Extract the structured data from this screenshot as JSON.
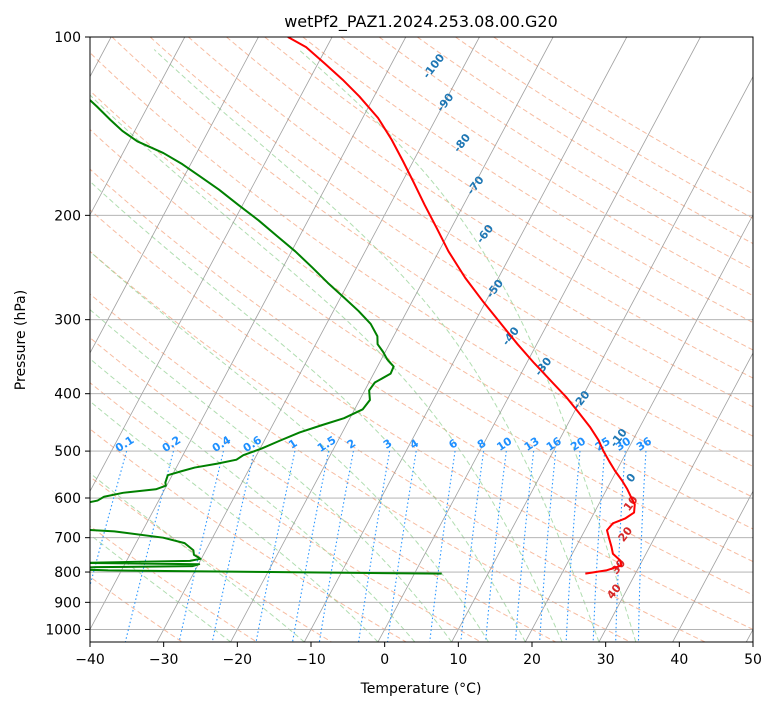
{
  "chart_data": {
    "type": "line",
    "subtype": "skew-t log-p diagram",
    "title": "wetPf2_PAZ1.2024.253.08.00.G20",
    "xlabel": "Temperature (°C)",
    "ylabel": "Pressure (hPa)",
    "xlim": [
      -40,
      50
    ],
    "ylim": [
      1050,
      100
    ],
    "y_scale": "log",
    "grid": true,
    "x_ticks": [
      -40,
      -30,
      -20,
      -10,
      0,
      10,
      20,
      30,
      40,
      50
    ],
    "y_ticks": [
      100,
      200,
      300,
      400,
      500,
      600,
      700,
      800,
      900,
      1000
    ],
    "series": [
      {
        "role": "temperature",
        "color": "#ff0000",
        "points": [
          [
            23.2,
            805
          ],
          [
            25.8,
            795
          ],
          [
            27.5,
            780
          ],
          [
            27.0,
            765
          ],
          [
            25.5,
            745
          ],
          [
            24.8,
            725
          ],
          [
            23.8,
            700
          ],
          [
            23.0,
            680
          ],
          [
            23.3,
            662
          ],
          [
            24.6,
            650
          ],
          [
            25.4,
            635
          ],
          [
            24.9,
            615
          ],
          [
            24.0,
            600
          ],
          [
            22.8,
            580
          ],
          [
            21.4,
            560
          ],
          [
            19.8,
            540
          ],
          [
            18.3,
            520
          ],
          [
            16.8,
            500
          ],
          [
            15.4,
            480
          ],
          [
            13.2,
            455
          ],
          [
            10.6,
            430
          ],
          [
            7.8,
            405
          ],
          [
            4.5,
            380
          ],
          [
            1.0,
            355
          ],
          [
            -2.6,
            330
          ],
          [
            -6.3,
            305
          ],
          [
            -10.3,
            280
          ],
          [
            -14.5,
            255
          ],
          [
            -18.7,
            230
          ],
          [
            -22.0,
            210
          ],
          [
            -25.3,
            192
          ],
          [
            -28.4,
            176
          ],
          [
            -31.4,
            162
          ],
          [
            -34.5,
            149
          ],
          [
            -37.9,
            137
          ],
          [
            -42.0,
            126
          ],
          [
            -45.5,
            118
          ],
          [
            -49.0,
            111
          ],
          [
            -52.8,
            104
          ],
          [
            -56.0,
            100
          ]
        ]
      },
      {
        "role": "dewpoint",
        "color": "#008000",
        "points": [
          [
            3.7,
            805
          ],
          [
            -19.7,
            800
          ],
          [
            -41.8,
            795
          ],
          [
            -48.5,
            790
          ],
          [
            -43.8,
            785
          ],
          [
            -30.7,
            782
          ],
          [
            -29.9,
            776
          ],
          [
            -45.8,
            772
          ],
          [
            -31.4,
            766
          ],
          [
            -30.1,
            760
          ],
          [
            -31.3,
            748
          ],
          [
            -31.7,
            735
          ],
          [
            -33.4,
            715
          ],
          [
            -36.7,
            700
          ],
          [
            -43.8,
            683
          ],
          [
            -56.0,
            670
          ],
          [
            -62.8,
            660
          ],
          [
            -64.6,
            652
          ],
          [
            -60.8,
            645
          ],
          [
            -54.8,
            638
          ],
          [
            -50.4,
            630
          ],
          [
            -50.5,
            622
          ],
          [
            -50.3,
            614
          ],
          [
            -48.3,
            606
          ],
          [
            -47.7,
            597
          ],
          [
            -45.4,
            588
          ],
          [
            -41.2,
            580
          ],
          [
            -40.1,
            572
          ],
          [
            -40.4,
            565
          ],
          [
            -40.5,
            557
          ],
          [
            -40.6,
            549
          ],
          [
            -39.1,
            541
          ],
          [
            -37.5,
            533
          ],
          [
            -34.7,
            525
          ],
          [
            -32.4,
            517
          ],
          [
            -31.8,
            508
          ],
          [
            -29.8,
            495
          ],
          [
            -28.0,
            481
          ],
          [
            -25.8,
            465
          ],
          [
            -23.3,
            452
          ],
          [
            -20.8,
            440
          ],
          [
            -18.9,
            425
          ],
          [
            -18.6,
            410
          ],
          [
            -19.4,
            395
          ],
          [
            -19.2,
            383
          ],
          [
            -17.7,
            370
          ],
          [
            -17.8,
            360
          ],
          [
            -19.2,
            350
          ],
          [
            -20.3,
            340
          ],
          [
            -21.6,
            330
          ],
          [
            -22.2,
            320
          ],
          [
            -24.0,
            305
          ],
          [
            -26.6,
            290
          ],
          [
            -29.6,
            275
          ],
          [
            -32.8,
            260
          ],
          [
            -36.0,
            245
          ],
          [
            -39.5,
            230
          ],
          [
            -43.0,
            217
          ],
          [
            -46.7,
            204
          ],
          [
            -50.6,
            192
          ],
          [
            -54.3,
            181
          ],
          [
            -57.8,
            172
          ],
          [
            -61.1,
            164
          ],
          [
            -64.5,
            157
          ],
          [
            -68.9,
            150
          ],
          [
            -71.7,
            144
          ],
          [
            -74.1,
            138
          ],
          [
            -76.9,
            131
          ],
          [
            -80.0,
            124
          ],
          [
            -83.0,
            118
          ],
          [
            -86.2,
            113
          ],
          [
            -88.3,
            107
          ],
          [
            -89.6,
            102
          ],
          [
            -90.3,
            100
          ]
        ]
      }
    ],
    "dry_adiabat_labels": [
      "-100",
      "-90",
      "-80",
      "-70",
      "-60",
      "-50",
      "-40",
      "-30",
      "-20",
      "-10",
      "0",
      "10",
      "20",
      "30",
      "40"
    ],
    "mixing_ratio_labels": [
      "0.1",
      "0.2",
      "0.4",
      "0.6",
      "1",
      "1.5",
      "2",
      "3",
      "4",
      "6",
      "8",
      "10",
      "13",
      "16",
      "20",
      "25",
      "30",
      "36"
    ],
    "colors": {
      "dry_adiabat_label": "#1f77b4",
      "dry_adiabat_label_warm": "#d62728",
      "mixing_ratio": "#1e90ff",
      "dry_adiabat_line": "#f4a582",
      "moist_adiabat_line": "#8fce8f",
      "isotherm": "#888888"
    }
  }
}
